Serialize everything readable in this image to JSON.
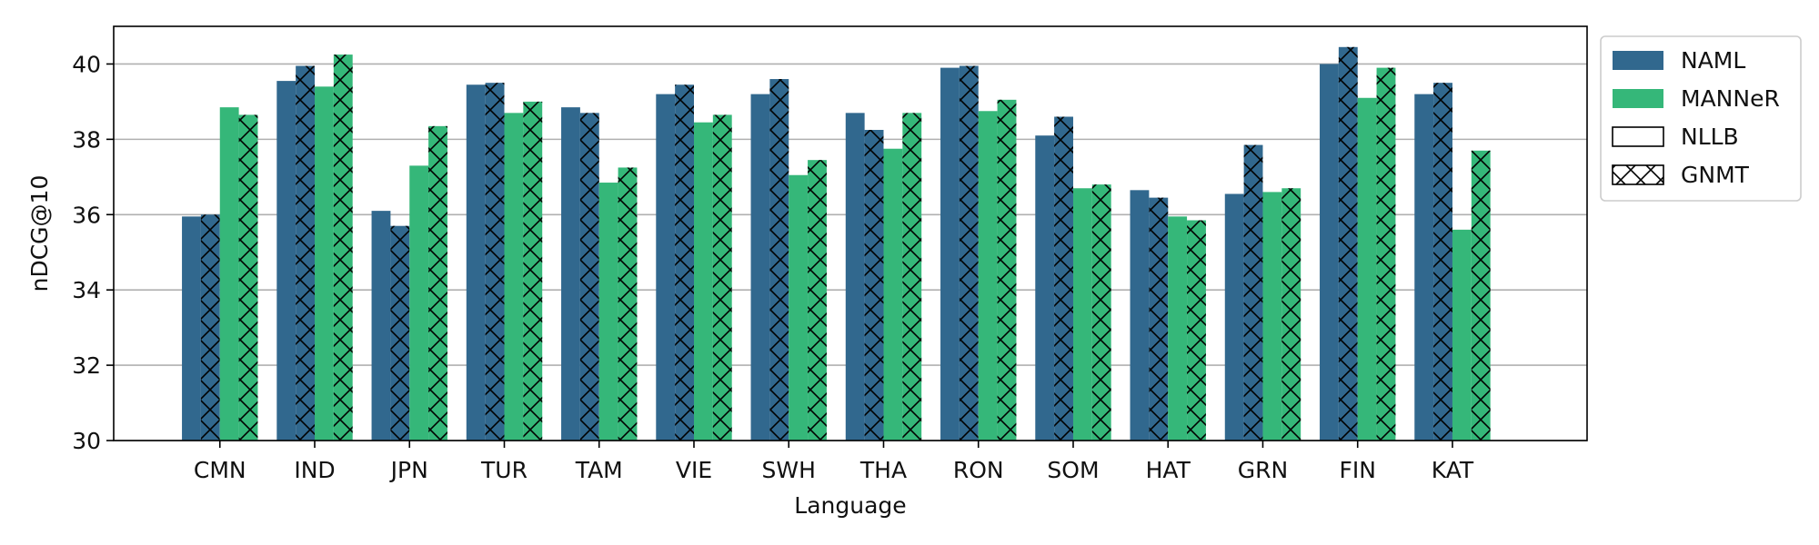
{
  "chart_data": {
    "type": "bar",
    "xlabel": "Language",
    "ylabel": "nDCG@10",
    "ylim": [
      30,
      41
    ],
    "yticks": [
      30,
      32,
      34,
      36,
      38,
      40
    ],
    "grid": "horizontal",
    "legend_position": "outside-right",
    "categories": [
      "CMN",
      "IND",
      "JPN",
      "TUR",
      "TAM",
      "VIE",
      "SWH",
      "THA",
      "RON",
      "SOM",
      "HAT",
      "GRN",
      "FIN",
      "KAT"
    ],
    "series": [
      {
        "name": "NAML (NLLB)",
        "model": "NAML",
        "translation": "NLLB",
        "color": "#31688e",
        "hatch": false,
        "values": [
          35.95,
          39.55,
          36.1,
          39.45,
          38.85,
          39.2,
          39.2,
          38.7,
          39.9,
          38.1,
          36.65,
          36.55,
          40.0,
          39.2
        ]
      },
      {
        "name": "NAML (GNMT)",
        "model": "NAML",
        "translation": "GNMT",
        "color": "#31688e",
        "hatch": true,
        "values": [
          36.0,
          39.95,
          35.7,
          39.5,
          38.7,
          39.45,
          39.6,
          38.25,
          39.95,
          38.6,
          36.45,
          37.85,
          40.45,
          39.5
        ]
      },
      {
        "name": "MANNeR (NLLB)",
        "model": "MANNeR",
        "translation": "NLLB",
        "color": "#35b779",
        "hatch": false,
        "values": [
          38.85,
          39.4,
          37.3,
          38.7,
          36.85,
          38.45,
          37.05,
          37.75,
          38.75,
          36.7,
          35.95,
          36.6,
          39.1,
          35.6
        ]
      },
      {
        "name": "MANNeR (GNMT)",
        "model": "MANNeR",
        "translation": "GNMT",
        "color": "#35b779",
        "hatch": true,
        "values": [
          38.65,
          40.25,
          38.35,
          39.0,
          37.25,
          38.65,
          37.45,
          38.7,
          39.05,
          36.8,
          35.85,
          36.7,
          39.9,
          37.7
        ]
      }
    ],
    "legend": [
      {
        "label": "NAML",
        "color": "#31688e",
        "hatch": false,
        "outline_only": false
      },
      {
        "label": "MANNeR",
        "color": "#35b779",
        "hatch": false,
        "outline_only": false
      },
      {
        "label": "NLLB",
        "color": "#ffffff",
        "hatch": false,
        "outline_only": true
      },
      {
        "label": "GNMT",
        "color": "#ffffff",
        "hatch": true,
        "outline_only": true
      }
    ]
  }
}
